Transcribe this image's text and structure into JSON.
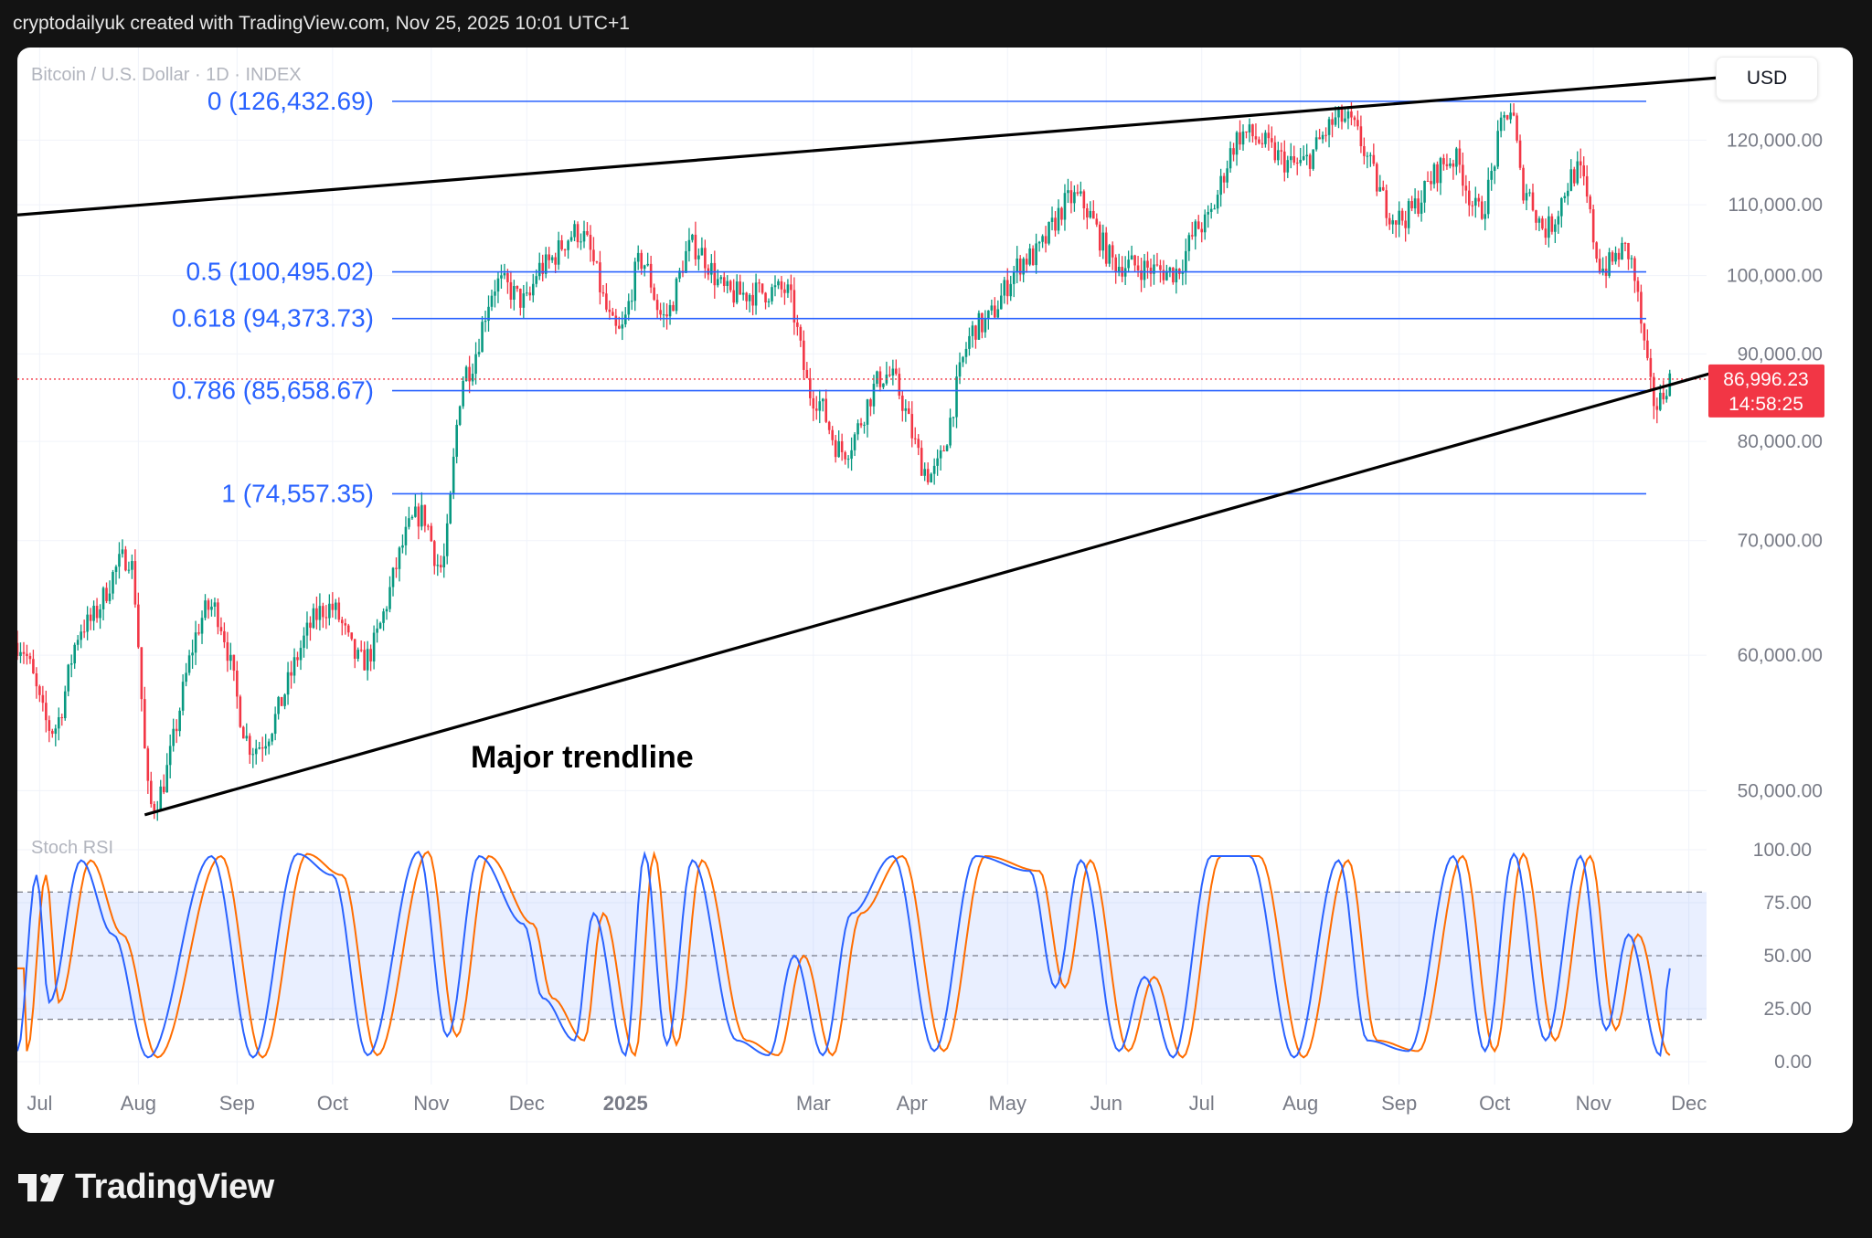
{
  "header": {
    "credit": "cryptodailyuk created with TradingView.com, Nov 25, 2025 10:01 UTC+1"
  },
  "brand": {
    "name": "TradingView"
  },
  "colors": {
    "up": "#089981",
    "down": "#f23645",
    "fib": "#2962ff",
    "trendline": "#000000",
    "stoch_k": "#2962ff",
    "stoch_d": "#ff6d00",
    "price_tag": "#f23645"
  },
  "chart_data": [
    {
      "type": "candlestick",
      "title": "Bitcoin / U.S. Dollar · 1D · INDEX",
      "currency": "USD",
      "y_scale": "log",
      "ylim": [
        47800,
        131000
      ],
      "y_ticks": [
        "120,000.00",
        "110,000.00",
        "100,000.00",
        "90,000.00",
        "80,000.00",
        "70,000.00",
        "60,000.00",
        "50,000.00"
      ],
      "y_tick_values": [
        120000,
        110000,
        100000,
        90000,
        80000,
        70000,
        60000,
        50000
      ],
      "x_ticks": [
        "Jul",
        "Aug",
        "Sep",
        "Oct",
        "Nov",
        "Dec",
        "2025",
        "Mar",
        "Apr",
        "May",
        "Jun",
        "Jul",
        "Aug",
        "Sep",
        "Oct",
        "Nov",
        "Dec"
      ],
      "x_tick_dates": [
        "2024-07-01",
        "2024-08-01",
        "2024-09-01",
        "2024-10-01",
        "2024-11-01",
        "2024-12-01",
        "2025-01-01",
        "2025-03-01",
        "2025-04-01",
        "2025-05-01",
        "2025-06-01",
        "2025-07-01",
        "2025-08-01",
        "2025-09-01",
        "2025-10-01",
        "2025-11-01",
        "2025-12-01"
      ],
      "x_range": [
        "2024-06-24",
        "2025-12-10"
      ],
      "price_anchors": [
        [
          "2024-06-24",
          61000
        ],
        [
          "2024-07-05",
          54300
        ],
        [
          "2024-07-15",
          62500
        ],
        [
          "2024-07-29",
          68500
        ],
        [
          "2024-08-05",
          49000
        ],
        [
          "2024-08-24",
          64000
        ],
        [
          "2024-09-06",
          53000
        ],
        [
          "2024-09-30",
          64000
        ],
        [
          "2024-10-10",
          59500
        ],
        [
          "2024-10-29",
          72500
        ],
        [
          "2024-11-04",
          67500
        ],
        [
          "2024-11-12",
          88000
        ],
        [
          "2024-11-22",
          99000
        ],
        [
          "2024-12-01",
          96500
        ],
        [
          "2024-12-05",
          101000
        ],
        [
          "2024-12-17",
          106000
        ],
        [
          "2024-12-30",
          92500
        ],
        [
          "2025-01-06",
          102000
        ],
        [
          "2025-01-13",
          94500
        ],
        [
          "2025-01-22",
          104000
        ],
        [
          "2025-02-03",
          97500
        ],
        [
          "2025-02-20",
          98000
        ],
        [
          "2025-03-01",
          85000
        ],
        [
          "2025-03-10",
          79000
        ],
        [
          "2025-03-24",
          87500
        ],
        [
          "2025-04-07",
          76500
        ],
        [
          "2025-04-22",
          93500
        ],
        [
          "2025-05-08",
          102500
        ],
        [
          "2025-05-22",
          111000
        ],
        [
          "2025-06-05",
          101500
        ],
        [
          "2025-06-22",
          100500
        ],
        [
          "2025-07-01",
          107000
        ],
        [
          "2025-07-14",
          121000
        ],
        [
          "2025-07-31",
          116000
        ],
        [
          "2025-08-14",
          123500
        ],
        [
          "2025-09-01",
          108000
        ],
        [
          "2025-09-18",
          117000
        ],
        [
          "2025-09-26",
          109000
        ],
        [
          "2025-10-06",
          125000
        ],
        [
          "2025-10-10",
          112500
        ],
        [
          "2025-10-17",
          106500
        ],
        [
          "2025-10-27",
          115000
        ],
        [
          "2025-11-04",
          101000
        ],
        [
          "2025-11-11",
          103500
        ],
        [
          "2025-11-21",
          84000
        ],
        [
          "2025-11-25",
          87000
        ]
      ],
      "last_price": "86,996.23",
      "countdown": "14:58:25",
      "fib_levels": [
        {
          "label": "0 (126,432.69)",
          "value": 126432.69
        },
        {
          "label": "0.5 (100,495.02)",
          "value": 100495.02
        },
        {
          "label": "0.618 (94,373.73)",
          "value": 94373.73
        },
        {
          "label": "0.786 (85,658.67)",
          "value": 85658.67
        },
        {
          "label": "1 (74,557.35)",
          "value": 74557.35
        }
      ],
      "trendlines": [
        {
          "name": "upper",
          "from": [
            "2024-06-24",
            108500
          ],
          "to": [
            "2025-12-10",
            130500
          ]
        },
        {
          "name": "lower",
          "from": [
            "2024-08-03",
            48400
          ],
          "to": [
            "2025-12-10",
            87900
          ]
        }
      ],
      "annotations": [
        "Major trendline"
      ]
    },
    {
      "type": "line",
      "title": "Stoch RSI",
      "ylim": [
        0,
        100
      ],
      "y_ticks": [
        "100.00",
        "75.00",
        "50.00",
        "25.00",
        "0.00"
      ],
      "y_tick_values": [
        100,
        75,
        50,
        25,
        0
      ],
      "band": [
        20,
        80
      ],
      "k_anchors": [
        [
          "2024-06-24",
          5
        ],
        [
          "2024-06-30",
          88
        ],
        [
          "2024-07-04",
          28
        ],
        [
          "2024-07-14",
          95
        ],
        [
          "2024-07-24",
          60
        ],
        [
          "2024-08-04",
          2
        ],
        [
          "2024-08-24",
          97
        ],
        [
          "2024-09-06",
          2
        ],
        [
          "2024-09-20",
          98
        ],
        [
          "2024-10-01",
          88
        ],
        [
          "2024-10-12",
          3
        ],
        [
          "2024-10-28",
          99
        ],
        [
          "2024-11-06",
          12
        ],
        [
          "2024-11-16",
          97
        ],
        [
          "2024-11-30",
          65
        ],
        [
          "2024-12-06",
          30
        ],
        [
          "2024-12-16",
          10
        ],
        [
          "2024-12-22",
          70
        ],
        [
          "2025-01-01",
          3
        ],
        [
          "2025-01-07",
          98
        ],
        [
          "2025-01-14",
          8
        ],
        [
          "2025-01-22",
          95
        ],
        [
          "2025-02-05",
          10
        ],
        [
          "2025-02-15",
          3
        ],
        [
          "2025-02-23",
          50
        ],
        [
          "2025-03-04",
          3
        ],
        [
          "2025-03-13",
          70
        ],
        [
          "2025-03-26",
          97
        ],
        [
          "2025-04-08",
          5
        ],
        [
          "2025-04-21",
          97
        ],
        [
          "2025-05-08",
          90
        ],
        [
          "2025-05-16",
          35
        ],
        [
          "2025-05-24",
          95
        ],
        [
          "2025-06-05",
          5
        ],
        [
          "2025-06-13",
          40
        ],
        [
          "2025-06-22",
          2
        ],
        [
          "2025-07-04",
          97
        ],
        [
          "2025-07-16",
          97
        ],
        [
          "2025-07-30",
          2
        ],
        [
          "2025-08-13",
          95
        ],
        [
          "2025-08-22",
          10
        ],
        [
          "2025-09-04",
          5
        ],
        [
          "2025-09-18",
          97
        ],
        [
          "2025-09-28",
          5
        ],
        [
          "2025-10-07",
          98
        ],
        [
          "2025-10-17",
          10
        ],
        [
          "2025-10-28",
          97
        ],
        [
          "2025-11-05",
          15
        ],
        [
          "2025-11-12",
          60
        ],
        [
          "2025-11-22",
          3
        ],
        [
          "2025-11-25",
          44
        ]
      ],
      "d_lag_days": 3
    }
  ]
}
